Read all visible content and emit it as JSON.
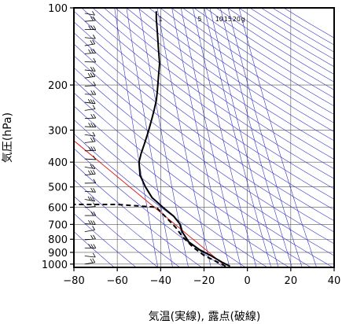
{
  "chart_data": {
    "type": "line",
    "xlabel": "気温(実線), 露点(破線)",
    "ylabel": "気圧(hPa)",
    "xlim": [
      -80,
      40
    ],
    "ylim": [
      1030,
      100
    ],
    "y_scale": "log",
    "x_ticks": [
      "−80",
      "−60",
      "−40",
      "−20",
      "0",
      "20",
      "40"
    ],
    "x_tick_values": [
      -80,
      -60,
      -40,
      -20,
      0,
      20,
      40
    ],
    "y_ticks": [
      "100",
      "200",
      "300",
      "400",
      "500",
      "600",
      "700",
      "800",
      "900",
      "1000"
    ],
    "y_tick_values": [
      100,
      200,
      300,
      400,
      500,
      600,
      700,
      800,
      900,
      1000
    ],
    "mixing_ratio_labels": [
      "1",
      "5",
      "10",
      "15",
      "20",
      "g"
    ],
    "series": [
      {
        "style": "solid",
        "x": [
          -8,
          -12,
          -17,
          -22,
          -27,
          -30,
          -31,
          -34,
          -39,
          -44,
          -47,
          -49.5,
          -50,
          -49,
          -47.5,
          -46,
          -45,
          -44,
          -43,
          -42,
          -41.5,
          -41,
          -40.5,
          -41,
          -41.5,
          -42,
          -42
        ],
        "y": [
          1020,
          980,
          925,
          880,
          820,
          750,
          700,
          650,
          600,
          550,
          500,
          450,
          400,
          370,
          340,
          310,
          290,
          270,
          250,
          230,
          210,
          185,
          165,
          145,
          125,
          110,
          103
        ]
      },
      {
        "style": "dashed",
        "x": [
          -10,
          -14,
          -20,
          -25,
          -30,
          -33,
          -42,
          -60,
          -80
        ],
        "y": [
          1020,
          980,
          925,
          860,
          780,
          720,
          600,
          585,
          585
        ]
      }
    ],
    "colors": {
      "grid": "#555555",
      "adiabat": "#3333cc",
      "reference_line": "#dd2222",
      "temperature": "#000000",
      "dewpoint": "#000000",
      "wind_barbs": "#000000"
    }
  }
}
